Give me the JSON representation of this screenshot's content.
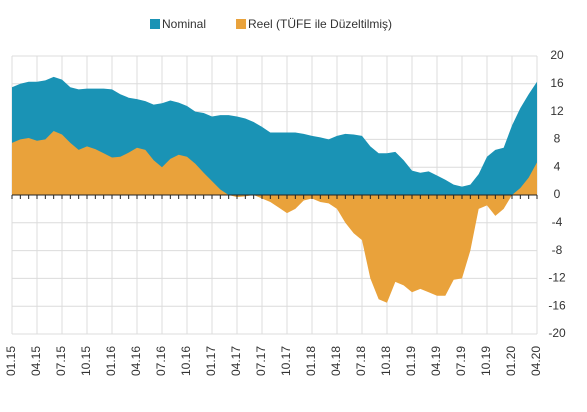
{
  "chart_data": {
    "type": "area",
    "categories": [
      "01.15",
      null,
      null,
      "04.15",
      null,
      null,
      "07.15",
      null,
      null,
      "10.15",
      null,
      null,
      "01.16",
      null,
      null,
      "04.16",
      null,
      null,
      "07.16",
      null,
      null,
      "10.16",
      null,
      null,
      "01.17",
      null,
      null,
      "04.17",
      null,
      null,
      "07.17",
      null,
      null,
      "10.17",
      null,
      null,
      "01.18",
      null,
      null,
      "04.18",
      null,
      null,
      "07.18",
      null,
      null,
      "10.18",
      null,
      null,
      "01.19",
      null,
      null,
      "04.19",
      null,
      null,
      "07.19",
      null,
      null,
      "10.19",
      null,
      null,
      "01.20",
      null,
      null,
      "04.20"
    ],
    "series": [
      {
        "name": "Nominal",
        "color": "#1a93b5",
        "values": [
          15.5,
          16,
          16.3,
          16.3,
          16.5,
          17,
          16.6,
          15.5,
          15.2,
          15.3,
          15.3,
          15.3,
          15.2,
          14.5,
          14,
          13.8,
          13.5,
          13,
          13.2,
          13.6,
          13.3,
          12.8,
          12,
          11.8,
          11.3,
          11.5,
          11.5,
          11.3,
          11,
          10.5,
          9.8,
          9,
          9,
          9,
          9,
          8.8,
          8.5,
          8.3,
          8,
          8.5,
          8.8,
          8.7,
          8.5,
          7,
          6,
          6,
          6.2,
          5,
          3.5,
          3.2,
          3.4,
          2.8,
          2.2,
          1.5,
          1.2,
          1.5,
          3,
          5.5,
          6.5,
          6.8,
          10,
          12.5,
          14.5,
          16.3
        ]
      },
      {
        "name": "Reel (TÜFE ile Düzeltilmiş)",
        "color": "#e9a23b",
        "values": [
          7.5,
          8,
          8.2,
          7.8,
          8,
          9.2,
          8.7,
          7.5,
          6.5,
          7,
          6.6,
          6,
          5.4,
          5.5,
          6.1,
          6.8,
          6.5,
          5,
          4,
          5.2,
          5.8,
          5.5,
          4.5,
          3.2,
          2,
          0.8,
          0,
          -0.3,
          -0.2,
          0,
          -0.5,
          -1,
          -1.8,
          -2.6,
          -2,
          -0.8,
          -0.5,
          -1,
          -1.2,
          -2,
          -4,
          -5.5,
          -6.5,
          -12,
          -15,
          -15.5,
          -12.5,
          -13,
          -14,
          -13.5,
          -14,
          -14.5,
          -14.5,
          -12.2,
          -12,
          -8,
          -2,
          -1.5,
          -3,
          -2,
          0,
          1,
          2.5,
          4.7
        ]
      }
    ],
    "ylim": [
      -20,
      20
    ],
    "yticks": [
      -20,
      -16,
      -12,
      -8,
      -4,
      0,
      4,
      8,
      12,
      16,
      20
    ],
    "grid": true,
    "legend": "top"
  }
}
